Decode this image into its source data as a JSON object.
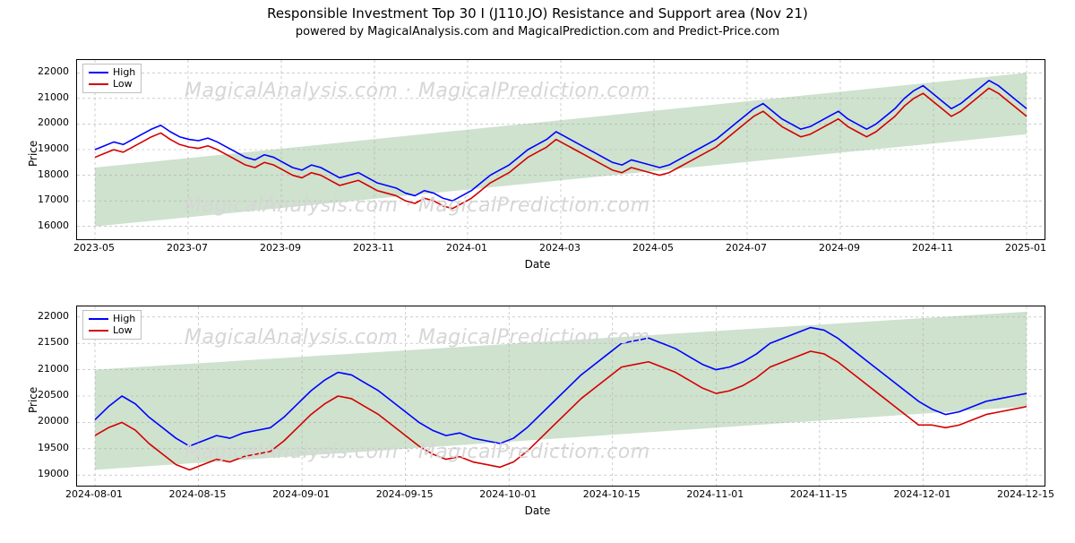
{
  "title": "Responsible Investment Top 30 I (J110.JO) Resistance and Support area (Nov 21)",
  "subtitle": "powered by MagicalAnalysis.com and MagicalPrediction.com and Predict-Price.com",
  "watermark_text": "MagicalAnalysis.com · MagicalPrediction.com",
  "legend": {
    "high": "High",
    "low": "Low"
  },
  "colors": {
    "high": "#0000ff",
    "low": "#d40000",
    "band": "#c9dfc9",
    "grid": "#b0b0b0",
    "border": "#000000",
    "bg": "#ffffff"
  },
  "top_chart": {
    "ylabel": "Price",
    "xlabel": "Date",
    "ylim": [
      15500,
      22500
    ],
    "yticks": [
      16000,
      17000,
      18000,
      19000,
      20000,
      21000,
      22000
    ],
    "xticks": [
      "2023-05",
      "2023-07",
      "2023-09",
      "2023-11",
      "2024-01",
      "2024-03",
      "2024-05",
      "2024-07",
      "2024-09",
      "2024-11",
      "2025-01"
    ],
    "band": {
      "start_low": 16000,
      "start_high": 18300,
      "end_low": 19600,
      "end_high": 22000
    },
    "n": 100,
    "high": [
      19000,
      19150,
      19300,
      19200,
      19400,
      19600,
      19800,
      19950,
      19700,
      19500,
      19400,
      19350,
      19450,
      19300,
      19100,
      18900,
      18700,
      18600,
      18800,
      18700,
      18500,
      18300,
      18200,
      18400,
      18300,
      18100,
      17900,
      18000,
      18100,
      17900,
      17700,
      17600,
      17500,
      17300,
      17200,
      17400,
      17300,
      17100,
      17000,
      17200,
      17400,
      17700,
      18000,
      18200,
      18400,
      18700,
      19000,
      19200,
      19400,
      19700,
      19500,
      19300,
      19100,
      18900,
      18700,
      18500,
      18400,
      18600,
      18500,
      18400,
      18300,
      18400,
      18600,
      18800,
      19000,
      19200,
      19400,
      19700,
      20000,
      20300,
      20600,
      20800,
      20500,
      20200,
      20000,
      19800,
      19900,
      20100,
      20300,
      20500,
      20200,
      20000,
      19800,
      20000,
      20300,
      20600,
      21000,
      21300,
      21500,
      21200,
      20900,
      20600,
      20800,
      21100,
      21400,
      21700,
      21500,
      21200,
      20900,
      20600
    ],
    "low": [
      18700,
      18850,
      19000,
      18900,
      19100,
      19300,
      19500,
      19650,
      19400,
      19200,
      19100,
      19050,
      19150,
      19000,
      18800,
      18600,
      18400,
      18300,
      18500,
      18400,
      18200,
      18000,
      17900,
      18100,
      18000,
      17800,
      17600,
      17700,
      17800,
      17600,
      17400,
      17300,
      17200,
      17000,
      16900,
      17100,
      17000,
      16800,
      16700,
      16900,
      17100,
      17400,
      17700,
      17900,
      18100,
      18400,
      18700,
      18900,
      19100,
      19400,
      19200,
      19000,
      18800,
      18600,
      18400,
      18200,
      18100,
      18300,
      18200,
      18100,
      18000,
      18100,
      18300,
      18500,
      18700,
      18900,
      19100,
      19400,
      19700,
      20000,
      20300,
      20500,
      20200,
      19900,
      19700,
      19500,
      19600,
      19800,
      20000,
      20200,
      19900,
      19700,
      19500,
      19700,
      20000,
      20300,
      20700,
      21000,
      21200,
      20900,
      20600,
      20300,
      20500,
      20800,
      21100,
      21400,
      21200,
      20900,
      20600,
      20300
    ]
  },
  "bottom_chart": {
    "ylabel": "Price",
    "xlabel": "Date",
    "ylim": [
      18800,
      22200
    ],
    "yticks": [
      19000,
      19500,
      20000,
      20500,
      21000,
      21500,
      22000
    ],
    "xticks": [
      "2024-08-01",
      "2024-08-15",
      "2024-09-01",
      "2024-09-15",
      "2024-10-01",
      "2024-10-15",
      "2024-11-01",
      "2024-11-15",
      "2024-12-01",
      "2024-12-15"
    ],
    "band": {
      "start_low": 19100,
      "start_high": 21000,
      "end_low": 20300,
      "end_high": 22100
    },
    "n": 70,
    "high": [
      20050,
      20300,
      20500,
      20350,
      20100,
      19900,
      19700,
      19550,
      19650,
      19750,
      19700,
      19800,
      19850,
      19900,
      20100,
      20350,
      20600,
      20800,
      20950,
      20900,
      20750,
      20600,
      20400,
      20200,
      20000,
      19850,
      19750,
      19800,
      19700,
      19650,
      19600,
      19700,
      19900,
      20150,
      20400,
      20650,
      20900,
      21100,
      21300,
      21500,
      21550,
      21600,
      21500,
      21400,
      21250,
      21100,
      21000,
      21050,
      21150,
      21300,
      21500,
      21600,
      21700,
      21800,
      21750,
      21600,
      21400,
      21200,
      21000,
      20800,
      20600,
      20400,
      20250,
      20150,
      20200,
      20300,
      20400,
      20450,
      20500,
      20550
    ],
    "low": [
      19750,
      19900,
      20000,
      19850,
      19600,
      19400,
      19200,
      19100,
      19200,
      19300,
      19250,
      19350,
      19400,
      19450,
      19650,
      19900,
      20150,
      20350,
      20500,
      20450,
      20300,
      20150,
      19950,
      19750,
      19550,
      19400,
      19300,
      19350,
      19250,
      19200,
      19150,
      19250,
      19450,
      19700,
      19950,
      20200,
      20450,
      20650,
      20850,
      21050,
      21100,
      21150,
      21050,
      20950,
      20800,
      20650,
      20550,
      20600,
      20700,
      20850,
      21050,
      21150,
      21250,
      21350,
      21300,
      21150,
      20950,
      20750,
      20550,
      20350,
      20150,
      19950,
      19950,
      19900,
      19950,
      20050,
      20150,
      20200,
      20250,
      20300
    ]
  }
}
